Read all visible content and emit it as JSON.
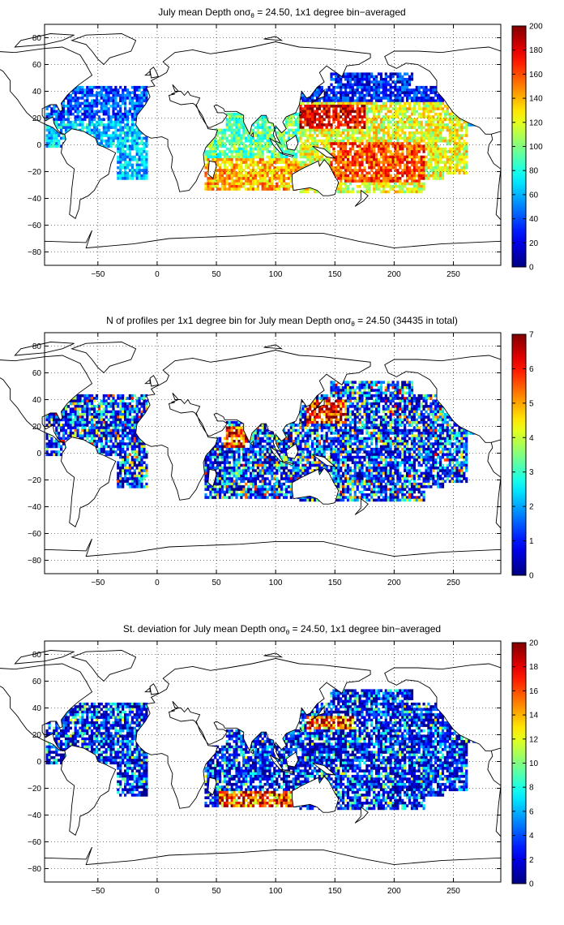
{
  "figure": {
    "panels": [
      {
        "title_prefix": "July mean Depth on",
        "title_sigma": "σ",
        "title_sub": "θ",
        "title_suffix": " = 24.50, 1x1 degree bin−averaged",
        "colorbar_ticks": [
          "0",
          "20",
          "40",
          "60",
          "80",
          "100",
          "120",
          "140",
          "160",
          "180",
          "200"
        ]
      },
      {
        "title_prefix": "N of profiles per 1x1 degree bin for July mean Depth on",
        "title_sigma": "σ",
        "title_sub": "θ",
        "title_suffix": " = 24.50 (34435 in total)",
        "colorbar_ticks": [
          "0",
          "1",
          "2",
          "3",
          "4",
          "5",
          "6",
          "7"
        ]
      },
      {
        "title_prefix": "St. deviation for July mean Depth on",
        "title_sigma": "σ",
        "title_sub": "θ",
        "title_suffix": " = 24.50, 1x1 degree bin−averaged",
        "colorbar_ticks": [
          "0",
          "2",
          "4",
          "6",
          "8",
          "10",
          "12",
          "14",
          "16",
          "18",
          "20"
        ]
      }
    ],
    "x_ticks": [
      "−50",
      "0",
      "50",
      "100",
      "150",
      "200",
      "250"
    ],
    "y_ticks": [
      "80",
      "60",
      "40",
      "20",
      "0",
      "−20",
      "−40",
      "−60",
      "−80"
    ]
  },
  "chart_data": [
    {
      "type": "heatmap",
      "title": "July mean Depth on σθ = 24.50, 1x1 degree bin−averaged",
      "xlim": [
        -95,
        290
      ],
      "ylim": [
        -90,
        90
      ],
      "colorbar_range": [
        0,
        200
      ],
      "colormap": "jet",
      "grid": true,
      "regions": [
        {
          "area": "western North Pacific (15–30N, 120–170E)",
          "approx_value": 180
        },
        {
          "area": "central South Pacific (0–25S, 150–220E)",
          "approx_value": 170
        },
        {
          "area": "southern Indian Ocean (10–30S, 50–110E)",
          "approx_value": 140
        },
        {
          "area": "North Atlantic subtropics (20–40N, 300–345E)",
          "approx_value": 40
        },
        {
          "area": "tropical Atlantic (0–20N)",
          "approx_value": 60
        },
        {
          "area": "Arabian Sea / Bay of Bengal",
          "approx_value": 90
        },
        {
          "area": "North Pacific (35–50N)",
          "approx_value": 30
        }
      ]
    },
    {
      "type": "heatmap",
      "title": "N of profiles per 1x1 degree bin for July mean Depth on σθ = 24.50 (34435 in total)",
      "xlim": [
        -95,
        290
      ],
      "ylim": [
        -90,
        90
      ],
      "colorbar_range": [
        0,
        7
      ],
      "colormap": "jet",
      "grid": true,
      "total_profiles": 34435,
      "regions": [
        {
          "area": "Kuroshio region (25–40N, 125–160E)",
          "approx_value": 7
        },
        {
          "area": "Arabian Sea",
          "approx_value": 6
        },
        {
          "area": "open ocean elsewhere",
          "approx_value": 2
        }
      ]
    },
    {
      "type": "heatmap",
      "title": "St. deviation for July mean Depth on σθ = 24.50, 1x1 degree bin−averaged",
      "xlim": [
        -95,
        290
      ],
      "ylim": [
        -90,
        90
      ],
      "colorbar_range": [
        0,
        20
      ],
      "colormap": "jet",
      "grid": true,
      "regions": [
        {
          "area": "Kuroshio extension (25–35N, 125–165E)",
          "approx_value": 18
        },
        {
          "area": "southern Indian Ocean (20–30S)",
          "approx_value": 14
        },
        {
          "area": "open ocean elsewhere",
          "approx_value": 6
        }
      ]
    }
  ]
}
